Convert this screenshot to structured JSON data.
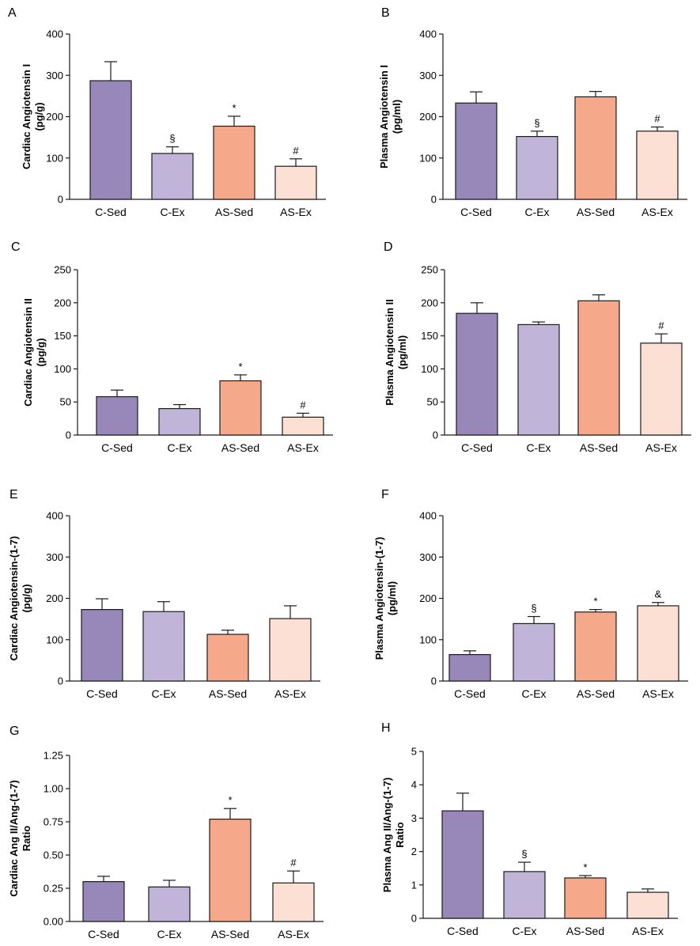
{
  "chart_data": [
    {
      "panel": "A",
      "type": "bar",
      "ylabel": [
        "Cardiac Angiotensin I",
        "(pg/g)"
      ],
      "categories": [
        "C-Sed",
        "C-Ex",
        "AS-Sed",
        "AS-Ex"
      ],
      "values": [
        287,
        111,
        177,
        80
      ],
      "errors": [
        46,
        16,
        24,
        18
      ],
      "annotations": [
        "",
        "§",
        "*",
        "#"
      ],
      "ylim": [
        0,
        400
      ],
      "yticks": [
        "0",
        "100",
        "200",
        "300",
        "400"
      ]
    },
    {
      "panel": "B",
      "type": "bar",
      "ylabel": [
        "Plasma Angiotensin I",
        "(pg/ml)"
      ],
      "categories": [
        "C-Sed",
        "C-Ex",
        "AS-Sed",
        "AS-Ex"
      ],
      "values": [
        233,
        152,
        248,
        165
      ],
      "errors": [
        27,
        13,
        13,
        10
      ],
      "annotations": [
        "",
        "§",
        "",
        "#"
      ],
      "ylim": [
        0,
        400
      ],
      "yticks": [
        "0",
        "100",
        "200",
        "300",
        "400"
      ]
    },
    {
      "panel": "C",
      "type": "bar",
      "ylabel": [
        "Cardiac Angiotensin II",
        "(pg/g)"
      ],
      "categories": [
        "C-Sed",
        "C-Ex",
        "AS-Sed",
        "AS-Ex"
      ],
      "values": [
        58,
        40,
        82,
        27
      ],
      "errors": [
        10,
        6,
        9,
        6
      ],
      "annotations": [
        "",
        "",
        "*",
        "#"
      ],
      "ylim": [
        0,
        250
      ],
      "yticks": [
        "0",
        "50",
        "100",
        "150",
        "200",
        "250"
      ]
    },
    {
      "panel": "D",
      "type": "bar",
      "ylabel": [
        "Plasma Angiotensin II",
        "(pg/ml)"
      ],
      "categories": [
        "C-Sed",
        "C-Ex",
        "AS-Sed",
        "AS-Ex"
      ],
      "values": [
        184,
        167,
        203,
        139
      ],
      "errors": [
        16,
        4,
        9,
        14
      ],
      "annotations": [
        "",
        "",
        "",
        "#"
      ],
      "ylim": [
        0,
        250
      ],
      "yticks": [
        "0",
        "50",
        "100",
        "150",
        "200",
        "250"
      ]
    },
    {
      "panel": "E",
      "type": "bar",
      "ylabel": [
        "Cardiac Angiotensin-(1-7)",
        "(pg/g)"
      ],
      "categories": [
        "C-Sed",
        "C-Ex",
        "AS-Sed",
        "AS-Ex"
      ],
      "values": [
        173,
        168,
        113,
        151
      ],
      "errors": [
        26,
        24,
        10,
        31
      ],
      "annotations": [
        "",
        "",
        "",
        ""
      ],
      "ylim": [
        0,
        400
      ],
      "yticks": [
        "0",
        "100",
        "200",
        "300",
        "400"
      ]
    },
    {
      "panel": "F",
      "type": "bar",
      "ylabel": [
        "Plasma Angiotensin-(1-7)",
        "(pg/ml)"
      ],
      "categories": [
        "C-Sed",
        "C-Ex",
        "AS-Sed",
        "AS-Ex"
      ],
      "values": [
        64,
        139,
        167,
        182
      ],
      "errors": [
        9,
        17,
        6,
        8
      ],
      "annotations": [
        "",
        "§",
        "*",
        "&"
      ],
      "ylim": [
        0,
        400
      ],
      "yticks": [
        "0",
        "100",
        "200",
        "300",
        "400"
      ]
    },
    {
      "panel": "G",
      "type": "bar",
      "ylabel": [
        "Cardiac Ang II/Ang-(1-7)",
        "Ratio"
      ],
      "categories": [
        "C-Sed",
        "C-Ex",
        "AS-Sed",
        "AS-Ex"
      ],
      "values": [
        0.3,
        0.26,
        0.77,
        0.29
      ],
      "errors": [
        0.04,
        0.05,
        0.08,
        0.09
      ],
      "annotations": [
        "",
        "",
        "*",
        "#"
      ],
      "ylim": [
        0,
        1.25
      ],
      "yticks": [
        "0.00",
        "0.25",
        "0.50",
        "0.75",
        "1.00",
        "1.25"
      ]
    },
    {
      "panel": "H",
      "type": "bar",
      "ylabel": [
        "Plasma Ang II/Ang-(1-7)",
        "Ratio"
      ],
      "categories": [
        "C-Sed",
        "C-Ex",
        "AS-Sed",
        "AS-Ex"
      ],
      "values": [
        3.22,
        1.4,
        1.21,
        0.78
      ],
      "errors": [
        0.53,
        0.28,
        0.07,
        0.1
      ],
      "annotations": [
        "",
        "§",
        "*",
        ""
      ],
      "ylim": [
        0,
        5
      ],
      "yticks": [
        "0",
        "1",
        "2",
        "3",
        "4",
        "5"
      ]
    }
  ],
  "colors": {
    "bars": [
      "#9788b9",
      "#c0b5d8",
      "#f6a98a",
      "#fde0d4"
    ],
    "stroke": "#1a1a1a"
  }
}
